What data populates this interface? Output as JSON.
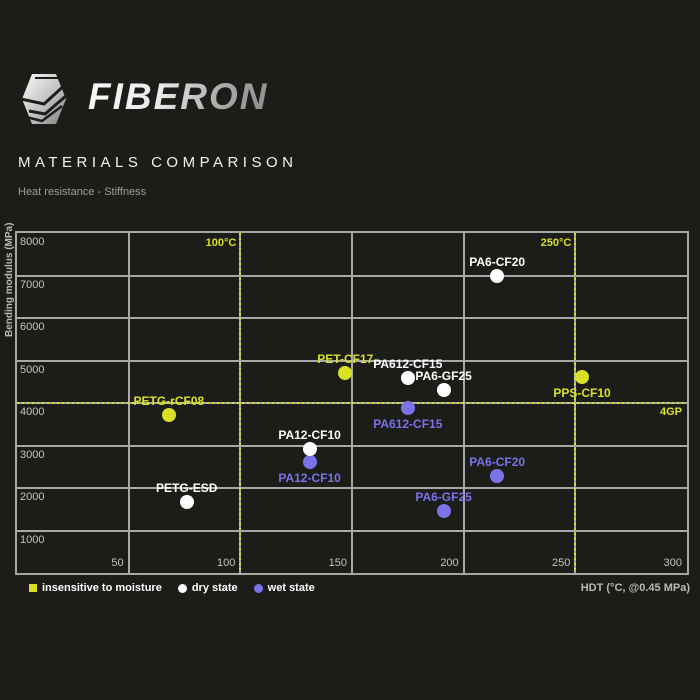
{
  "header": {
    "brand": "FIBERON",
    "title": "MATERIALS COMPARISON",
    "subtitle": "Heat resistance - Stiffness"
  },
  "chart_data": {
    "type": "scatter",
    "xlabel": "HDT (°C, @0.45 MPa)",
    "ylabel": "Bending modulus (MPa)",
    "xlim": [
      0,
      300
    ],
    "ylim": [
      0,
      8000
    ],
    "xticks": [
      50,
      100,
      150,
      200,
      250,
      300
    ],
    "yticks": [
      1000,
      2000,
      3000,
      4000,
      5000,
      6000,
      7000,
      8000
    ],
    "grid": true,
    "annotations": {
      "vlines": [
        {
          "x": 100,
          "label": "100°C"
        },
        {
          "x": 250,
          "label": "250°C"
        }
      ],
      "hlines": [
        {
          "y": 4000,
          "label": "4GP"
        }
      ]
    },
    "series": [
      {
        "name": "insensitive to moisture",
        "state": "insensitive",
        "marker": "square",
        "color": "#d9e125",
        "points": [
          {
            "material": "PETG-rCF08",
            "x": 68,
            "y": 3710,
            "label_pos": "above"
          },
          {
            "material": "PET-CF17",
            "x": 147,
            "y": 4700,
            "label_pos": "above"
          },
          {
            "material": "PPS-CF10",
            "x": 253,
            "y": 4620,
            "label_pos": "below"
          }
        ]
      },
      {
        "name": "wet state",
        "state": "wet",
        "marker": "circle",
        "color": "#7a73e8",
        "points": [
          {
            "material": "PA12-CF10",
            "x": 131,
            "y": 2620,
            "label_pos": "below"
          },
          {
            "material": "PA612-CF15",
            "x": 175,
            "y": 3890,
            "label_pos": "below"
          },
          {
            "material": "PA6-GF25",
            "x": 191,
            "y": 1450,
            "label_pos": "above"
          },
          {
            "material": "PA6-CF20",
            "x": 215,
            "y": 2280,
            "label_pos": "above"
          }
        ]
      },
      {
        "name": "dry state",
        "state": "dry",
        "marker": "circle",
        "color": "#ffffff",
        "points": [
          {
            "material": "PETG-ESD",
            "x": 76,
            "y": 1680,
            "label_pos": "above"
          },
          {
            "material": "PA12-CF10",
            "x": 131,
            "y": 2910,
            "label_pos": "above"
          },
          {
            "material": "PA612-CF15",
            "x": 175,
            "y": 4580,
            "label_pos": "above"
          },
          {
            "material": "PA6-GF25",
            "x": 191,
            "y": 4310,
            "label_pos": "above"
          },
          {
            "material": "PA6-CF20",
            "x": 215,
            "y": 6990,
            "label_pos": "above"
          }
        ]
      }
    ],
    "legend": [
      {
        "label": "insensitive to moisture",
        "marker": "square",
        "color": "#d9e125"
      },
      {
        "label": "dry state",
        "marker": "circle",
        "color": "#ffffff"
      },
      {
        "label": "wet state",
        "marker": "circle",
        "color": "#7a73e8"
      }
    ],
    "legend_position": "bottom-left"
  }
}
